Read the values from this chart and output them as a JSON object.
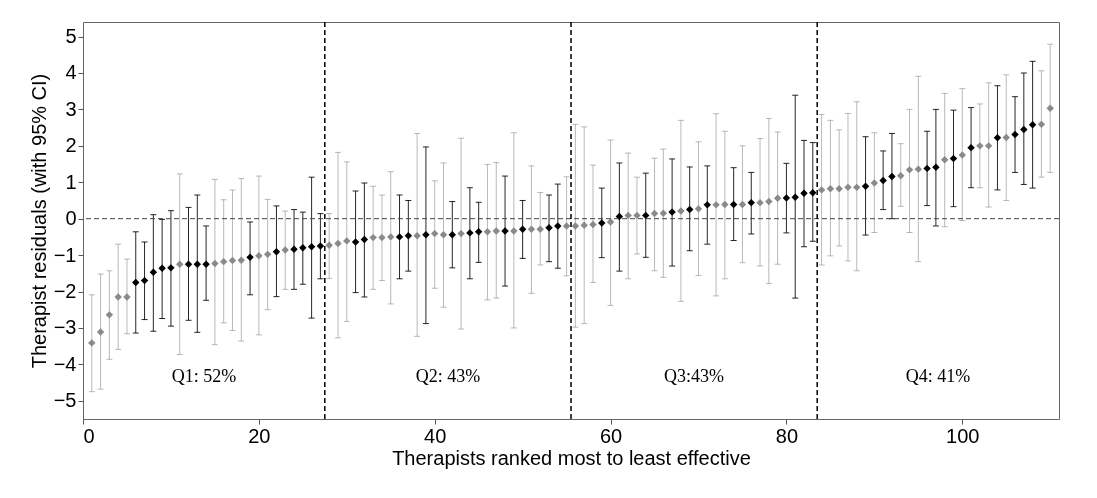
{
  "chart_data": {
    "type": "scatter",
    "xlabel": "Therapists ranked most to least effective",
    "ylabel": "Therapist residuals (with 95% CI)",
    "xlim": [
      0,
      111
    ],
    "ylim": [
      -5.5,
      5.4
    ],
    "xticks": [
      0,
      20,
      40,
      60,
      80,
      100
    ],
    "yticks": [
      -5,
      -4,
      -3,
      -2,
      -1,
      0,
      1,
      2,
      3,
      4,
      5
    ],
    "grid": false,
    "marker": "diamond",
    "series": [
      {
        "color": "#8a8a8a",
        "x": [
          1,
          2,
          3,
          4,
          5,
          11,
          15,
          16,
          17,
          18,
          20,
          21,
          23,
          28,
          29,
          30,
          33,
          34,
          35,
          38,
          40,
          41,
          43,
          46,
          47,
          49,
          51,
          52,
          55,
          56,
          57,
          58,
          60,
          62,
          63,
          65,
          66,
          68,
          70,
          72,
          73,
          75,
          77,
          78,
          79,
          84,
          85,
          86,
          87,
          88,
          90,
          93,
          94,
          95,
          98,
          100,
          102,
          103,
          105,
          109,
          110
        ],
        "values": [
          -3.41,
          -3.11,
          -2.64,
          -2.15,
          -2.15,
          -1.25,
          -1.23,
          -1.18,
          -1.15,
          -1.14,
          -1.02,
          -0.98,
          -0.86,
          -0.73,
          -0.68,
          -0.61,
          -0.52,
          -0.52,
          -0.5,
          -0.47,
          -0.41,
          -0.44,
          -0.41,
          -0.36,
          -0.34,
          -0.34,
          -0.29,
          -0.29,
          -0.2,
          -0.2,
          -0.18,
          -0.16,
          -0.09,
          0.09,
          0.09,
          0.14,
          0.15,
          0.21,
          0.27,
          0.38,
          0.39,
          0.39,
          0.44,
          0.47,
          0.56,
          0.79,
          0.82,
          0.82,
          0.86,
          0.86,
          0.98,
          1.18,
          1.34,
          1.36,
          1.62,
          1.75,
          2.0,
          2.0,
          2.23,
          2.59,
          3.03
        ],
        "errors": [
          [
            -4.75,
            -2.09
          ],
          [
            -4.68,
            -1.52
          ],
          [
            -3.86,
            -1.43
          ],
          [
            -3.59,
            -0.7
          ],
          [
            -3.16,
            -1.11
          ],
          [
            -3.73,
            1.23
          ],
          [
            -3.46,
            1.08
          ],
          [
            -2.86,
            0.52
          ],
          [
            -3.07,
            0.79
          ],
          [
            -3.36,
            1.1
          ],
          [
            -3.19,
            1.17
          ],
          [
            -2.5,
            0.53
          ],
          [
            -1.94,
            0.21
          ],
          [
            -1.64,
            0.14
          ],
          [
            -3.27,
            1.82
          ],
          [
            -2.82,
            1.56
          ],
          [
            -1.94,
            0.89
          ],
          [
            -1.7,
            0.65
          ],
          [
            -2.34,
            1.29
          ],
          [
            -3.23,
            2.34
          ],
          [
            -1.91,
            1.04
          ],
          [
            -2.43,
            1.53
          ],
          [
            -3.03,
            2.21
          ],
          [
            -2.23,
            1.49
          ],
          [
            -2.18,
            1.54
          ],
          [
            -3.0,
            2.36
          ],
          [
            -2.05,
            1.45
          ],
          [
            -1.27,
            0.72
          ],
          [
            -1.57,
            1.15
          ],
          [
            -2.98,
            2.59
          ],
          [
            -2.88,
            2.52
          ],
          [
            -1.75,
            1.47
          ],
          [
            -2.38,
            2.16
          ],
          [
            -1.65,
            1.8
          ],
          [
            -0.97,
            1.14
          ],
          [
            -1.43,
            1.66
          ],
          [
            -1.61,
            1.91
          ],
          [
            -2.27,
            2.7
          ],
          [
            -1.56,
            2.11
          ],
          [
            -2.12,
            2.88
          ],
          [
            -1.65,
            2.4
          ],
          [
            -1.21,
            2.0
          ],
          [
            -1.3,
            2.2
          ],
          [
            -1.78,
            2.75
          ],
          [
            -1.25,
            2.38
          ],
          [
            -1.27,
            2.86
          ],
          [
            -1.02,
            2.7
          ],
          [
            -0.75,
            2.44
          ],
          [
            -1.16,
            2.89
          ],
          [
            -1.43,
            3.21
          ],
          [
            -0.38,
            2.36
          ],
          [
            0.34,
            2.06
          ],
          [
            -0.38,
            3.0
          ],
          [
            -1.18,
            3.91
          ],
          [
            -0.22,
            3.44
          ],
          [
            -0.05,
            3.57
          ],
          [
            0.85,
            3.15
          ],
          [
            0.32,
            3.73
          ],
          [
            0.5,
            3.95
          ],
          [
            1.14,
            4.06
          ],
          [
            1.27,
            4.79
          ]
        ]
      },
      {
        "color": "#000000",
        "x": [
          6,
          7,
          8,
          9,
          10,
          12,
          13,
          14,
          19,
          22,
          24,
          25,
          26,
          27,
          31,
          32,
          36,
          37,
          39,
          42,
          44,
          45,
          48,
          50,
          53,
          54,
          59,
          61,
          64,
          67,
          69,
          71,
          74,
          76,
          80,
          81,
          82,
          83,
          89,
          91,
          92,
          96,
          97,
          99,
          101,
          104,
          106,
          107,
          108
        ],
        "values": [
          -1.75,
          -1.7,
          -1.47,
          -1.36,
          -1.35,
          -1.25,
          -1.25,
          -1.25,
          -1.06,
          -0.91,
          -0.84,
          -0.8,
          -0.77,
          -0.75,
          -0.64,
          -0.57,
          -0.5,
          -0.47,
          -0.44,
          -0.44,
          -0.39,
          -0.36,
          -0.34,
          -0.29,
          -0.25,
          -0.2,
          -0.12,
          0.06,
          0.09,
          0.18,
          0.25,
          0.38,
          0.39,
          0.44,
          0.57,
          0.59,
          0.7,
          0.71,
          0.89,
          1.05,
          1.16,
          1.38,
          1.41,
          1.65,
          1.95,
          2.22,
          2.31,
          2.45,
          2.58
        ],
        "errors": [
          [
            -3.14,
            -0.36
          ],
          [
            -2.77,
            -0.64
          ],
          [
            -3.09,
            0.11
          ],
          [
            -2.74,
            -0.02
          ],
          [
            -2.95,
            0.22
          ],
          [
            -2.79,
            0.31
          ],
          [
            -3.12,
            0.65
          ],
          [
            -2.24,
            -0.2
          ],
          [
            -2.09,
            -0.09
          ],
          [
            -2.14,
            0.35
          ],
          [
            -1.94,
            0.25
          ],
          [
            -1.8,
            0.18
          ],
          [
            -2.73,
            1.14
          ],
          [
            -1.65,
            0.14
          ],
          [
            -2.03,
            0.76
          ],
          [
            -2.15,
            0.98
          ],
          [
            -1.65,
            0.65
          ],
          [
            -1.44,
            0.5
          ],
          [
            -2.88,
            1.97
          ],
          [
            -1.35,
            0.47
          ],
          [
            -1.65,
            0.85
          ],
          [
            -1.2,
            0.45
          ],
          [
            -1.85,
            1.17
          ],
          [
            -1.09,
            0.5
          ],
          [
            -1.18,
            0.65
          ],
          [
            -1.36,
            0.95
          ],
          [
            -1.07,
            0.84
          ],
          [
            -1.44,
            1.53
          ],
          [
            -1.06,
            1.25
          ],
          [
            -1.3,
            1.64
          ],
          [
            -0.88,
            1.42
          ],
          [
            -0.7,
            1.45
          ],
          [
            -0.6,
            1.4
          ],
          [
            -0.42,
            1.27
          ],
          [
            -0.39,
            1.52
          ],
          [
            -2.18,
            3.39
          ],
          [
            -0.77,
            2.15
          ],
          [
            -0.62,
            2.09
          ],
          [
            -0.45,
            2.25
          ],
          [
            0.25,
            1.86
          ],
          [
            0.0,
            2.34
          ],
          [
            0.36,
            2.4
          ],
          [
            -0.2,
            3.0
          ],
          [
            0.33,
            2.98
          ],
          [
            0.85,
            3.05
          ],
          [
            0.79,
            3.65
          ],
          [
            1.27,
            3.35
          ],
          [
            0.94,
            4.0
          ],
          [
            0.84,
            4.32
          ]
        ]
      }
    ],
    "ref_lines": [
      {
        "axis": "y",
        "value": 0,
        "line_style": "dashed",
        "color": "#444444"
      },
      {
        "axis": "x",
        "value": 27.5,
        "line_style": "dashed",
        "color": "#000000"
      },
      {
        "axis": "x",
        "value": 55.5,
        "line_style": "dashed",
        "color": "#000000"
      },
      {
        "axis": "x",
        "value": 83.5,
        "line_style": "dashed",
        "color": "#000000"
      }
    ],
    "annotations": [
      "Q1: 52%",
      "Q2: 43%",
      "Q3:43%",
      "Q4: 41%"
    ]
  }
}
